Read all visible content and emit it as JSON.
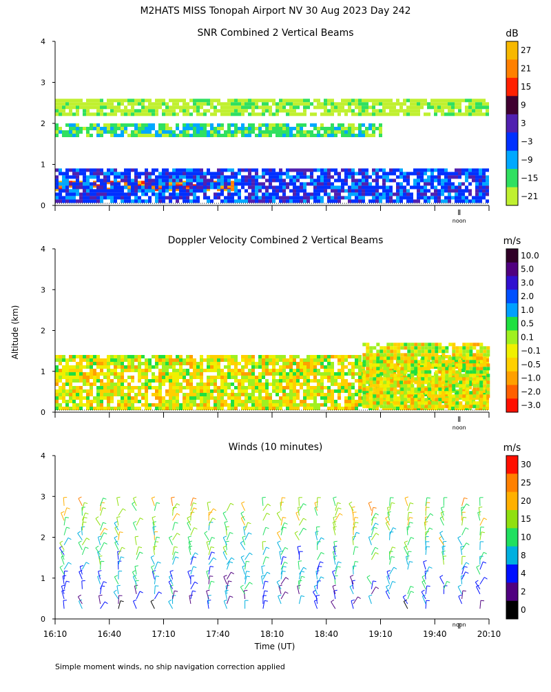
{
  "page": {
    "title": "M2HATS MISS Tonopah Airport NV  30 Aug 2023 Day 242",
    "ylabel": "Altitude (km)",
    "xlabel": "Time (UT)",
    "noon_label": "noon",
    "footnote": "Simple moment winds, no ship navigation correction applied"
  },
  "chart_data": [
    {
      "type": "heatmap",
      "title": "SNR Combined 2 Vertical Beams",
      "ylabel": "Altitude (km)",
      "ylim": [
        0,
        4
      ],
      "yticks": [
        "0",
        "1",
        "2",
        "3",
        "4"
      ],
      "xlim": [
        "16:10",
        "20:10"
      ],
      "x_tick_labels": [],
      "colorbar": {
        "unit": "dB",
        "labels": [
          "27",
          "21",
          "15",
          "9",
          "3",
          "−3",
          "−9",
          "−15",
          "−21"
        ],
        "colors": [
          "#f7b800",
          "#ff8000",
          "#ff2000",
          "#400030",
          "#5020b0",
          "#0030ff",
          "#00a8ff",
          "#30e060",
          "#c0f030"
        ]
      },
      "layers": [
        {
          "feature": "strong return layer",
          "altitude_km": [
            0.35,
            0.6
          ],
          "time": [
            "16:10",
            "17:50"
          ],
          "snr_db": 24
        },
        {
          "feature": "boundary layer",
          "altitude_km": [
            0.1,
            0.9
          ],
          "time": [
            "16:10",
            "20:10"
          ],
          "snr_db": 0
        },
        {
          "feature": "elevated layer",
          "altitude_km": [
            1.7,
            2.0
          ],
          "time": [
            "16:10",
            "19:10"
          ],
          "snr_db": -12
        },
        {
          "feature": "upper layer",
          "altitude_km": [
            2.2,
            2.6
          ],
          "time": [
            "16:10",
            "20:10"
          ],
          "snr_db": -18
        }
      ]
    },
    {
      "type": "heatmap",
      "title": "Doppler Velocity Combined 2 Vertical Beams",
      "ylabel": "Altitude (km)",
      "ylim": [
        0,
        4
      ],
      "yticks": [
        "0",
        "1",
        "2",
        "3",
        "4"
      ],
      "xlim": [
        "16:10",
        "20:10"
      ],
      "x_tick_labels": [],
      "colorbar": {
        "unit": "m/s",
        "labels": [
          "10.0",
          "5.0",
          "3.0",
          "2.0",
          "1.0",
          "0.5",
          "0.1",
          "−0.1",
          "−0.5",
          "−1.0",
          "−2.0",
          "−3.0"
        ],
        "colors": [
          "#300028",
          "#500080",
          "#3010d0",
          "#0050ff",
          "#00a0ff",
          "#20e040",
          "#a0f020",
          "#f0f000",
          "#ffd000",
          "#ffa000",
          "#ff6000",
          "#ff1000"
        ]
      },
      "layers": [
        {
          "feature": "boundary layer motion",
          "altitude_km": [
            0.1,
            1.4
          ],
          "time": [
            "16:10",
            "20:10"
          ],
          "velocity_ms": [
            -1.0,
            0.5
          ]
        },
        {
          "feature": "convective updrafts",
          "altitude_km": [
            0.1,
            1.7
          ],
          "time": [
            "19:00",
            "20:10"
          ],
          "velocity_ms": [
            -3.0,
            2.0
          ]
        }
      ]
    },
    {
      "type": "wind_barbs",
      "title": "Winds (10 minutes)",
      "ylabel": "Altitude (km)",
      "xlabel": "Time (UT)",
      "ylim": [
        0,
        4
      ],
      "yticks": [
        "0",
        "1",
        "2",
        "3",
        "4"
      ],
      "xlim": [
        "16:10",
        "20:10"
      ],
      "x_tick_labels": [
        "16:10",
        "16:40",
        "17:10",
        "17:40",
        "18:10",
        "18:40",
        "19:10",
        "19:40",
        "20:10"
      ],
      "interval_minutes": 10,
      "colorbar": {
        "unit": "m/s",
        "labels": [
          "30",
          "25",
          "20",
          "15",
          "10",
          "8",
          "4",
          "2",
          "0"
        ],
        "colors": [
          "#ff1000",
          "#ff8000",
          "#ffb000",
          "#90e010",
          "#20e060",
          "#00b0e0",
          "#0010ff",
          "#500080",
          "#000000"
        ]
      }
    }
  ]
}
